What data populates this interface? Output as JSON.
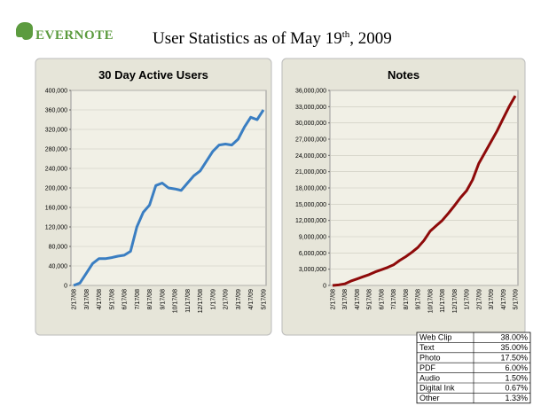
{
  "header": {
    "logo": "EVERNOTE",
    "title_main": "User Statistics as of May 19",
    "title_sup": "th",
    "title_end": ", 2009"
  },
  "chart_data": [
    {
      "type": "line",
      "title": "30 Day Active Users",
      "color": "#3a7ec2",
      "grid": true,
      "categories": [
        "2/17/08",
        null,
        "3/17/08",
        null,
        "4/17/08",
        null,
        "5/17/08",
        null,
        "6/17/08",
        null,
        "7/17/08",
        null,
        "8/17/08",
        null,
        "9/17/08",
        null,
        "10/17/08",
        null,
        "11/17/08",
        null,
        "12/17/08",
        null,
        "1/17/09",
        null,
        "2/17/09",
        null,
        "3/17/09",
        null,
        "4/17/09",
        null,
        "5/17/09"
      ],
      "values": [
        0,
        5000,
        25000,
        45000,
        55000,
        55000,
        57000,
        60000,
        62000,
        70000,
        120000,
        150000,
        165000,
        205000,
        210000,
        200000,
        198000,
        195000,
        210000,
        225000,
        235000,
        255000,
        275000,
        288000,
        290000,
        288000,
        300000,
        325000,
        345000,
        340000,
        360000
      ],
      "ylim": [
        0,
        400000
      ],
      "yticks": [
        0,
        {
          "value": 40000,
          "label": "40,000"
        },
        {
          "value": 80000,
          "label": "80,000"
        },
        {
          "value": 120000,
          "label": "120,000"
        },
        {
          "value": 160000,
          "label": "160,000"
        },
        {
          "value": 200000,
          "label": "200,000"
        },
        {
          "value": 240000,
          "label": "240,000"
        },
        {
          "value": 280000,
          "label": "280,000"
        },
        {
          "value": 320000,
          "label": "320,000"
        },
        {
          "value": 360000,
          "label": "360,000"
        },
        {
          "value": 400000,
          "label": "400,000"
        }
      ]
    },
    {
      "type": "line",
      "title": "Notes",
      "color": "#8e0a0a",
      "grid": true,
      "categories": [
        "2/17/08",
        null,
        "3/17/08",
        null,
        "4/17/08",
        null,
        "5/17/08",
        null,
        "6/17/08",
        null,
        "7/17/08",
        null,
        "8/17/08",
        null,
        "9/17/08",
        null,
        "10/17/08",
        null,
        "11/17/08",
        null,
        "12/17/08",
        null,
        "1/17/09",
        null,
        "2/17/09",
        null,
        "3/17/09",
        null,
        "4/17/09",
        null,
        "5/17/09"
      ],
      "values": [
        0,
        100000,
        300000,
        800000,
        1200000,
        1600000,
        2000000,
        2500000,
        2900000,
        3300000,
        3800000,
        4600000,
        5300000,
        6100000,
        7000000,
        8300000,
        10000000,
        11000000,
        12000000,
        13300000,
        14700000,
        16200000,
        17500000,
        19500000,
        22500000,
        24500000,
        26500000,
        28500000,
        30800000,
        33000000,
        35000000
      ],
      "ylim": [
        0,
        36000000
      ],
      "yticks": [
        0,
        {
          "value": 3000000,
          "label": "3,000,000"
        },
        {
          "value": 6000000,
          "label": "6,000,000"
        },
        {
          "value": 9000000,
          "label": "9,000,000"
        },
        {
          "value": 12000000,
          "label": "12,000,000"
        },
        {
          "value": 15000000,
          "label": "15,000,000"
        },
        {
          "value": 18000000,
          "label": "18,000,000"
        },
        {
          "value": 21000000,
          "label": "21,000,000"
        },
        {
          "value": 24000000,
          "label": "24,000,000"
        },
        {
          "value": 27000000,
          "label": "27,000,000"
        },
        {
          "value": 30000000,
          "label": "30,000,000"
        },
        {
          "value": 33000000,
          "label": "33,000,000"
        },
        {
          "value": 36000000,
          "label": "36,000,000"
        }
      ]
    }
  ],
  "table": {
    "rows": [
      [
        "Web Clip",
        "38.00%"
      ],
      [
        "Text",
        "35.00%"
      ],
      [
        "Photo",
        "17.50%"
      ],
      [
        "PDF",
        "6.00%"
      ],
      [
        "Audio",
        "1.50%"
      ],
      [
        "Digital Ink",
        "0.67%"
      ],
      [
        "Other",
        "1.33%"
      ]
    ]
  }
}
